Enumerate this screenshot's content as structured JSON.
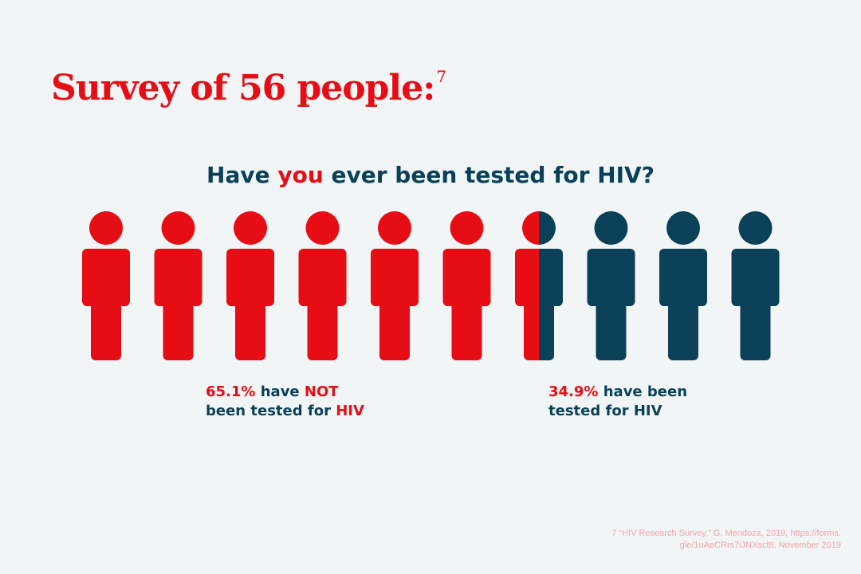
{
  "title": {
    "text": "Survey of 56 people:",
    "footnote_ref": "7"
  },
  "question": {
    "before": "Have",
    "highlight": "you",
    "after": "ever been tested for HIV?"
  },
  "stats": {
    "not_tested": {
      "percent": "65.1%",
      "line1_mid": "have",
      "line1_emph": "NOT",
      "line2_pre": "been tested for",
      "line2_emph": "HIV"
    },
    "tested": {
      "percent": "34.9%",
      "line1_rest": "have been",
      "line2": "tested for HIV"
    }
  },
  "footnote": {
    "line1": "7 “HIV Research Survey.” G. Mendoza, 2019, https://forms.",
    "line2": "gle/1uAeCRrs7iJNXsct8. November 2019"
  },
  "colors": {
    "background": "#f1f5f6",
    "not_tested": "#e60d14",
    "tested": "#0a4158",
    "footnote": "#f2a3a8"
  },
  "chart_data": {
    "type": "pictograph",
    "title": "Survey of 56 people:",
    "subtitle": "Have you ever been tested for HIV?",
    "icon": "person-icon",
    "icon_count": 10,
    "series": [
      {
        "name": "have NOT been tested for HIV",
        "value_percent": 65.1,
        "icons": 6.5,
        "color": "#e60d14"
      },
      {
        "name": "have been tested for HIV",
        "value_percent": 34.9,
        "icons": 3.5,
        "color": "#0a4158"
      }
    ],
    "sample_size": 56
  }
}
